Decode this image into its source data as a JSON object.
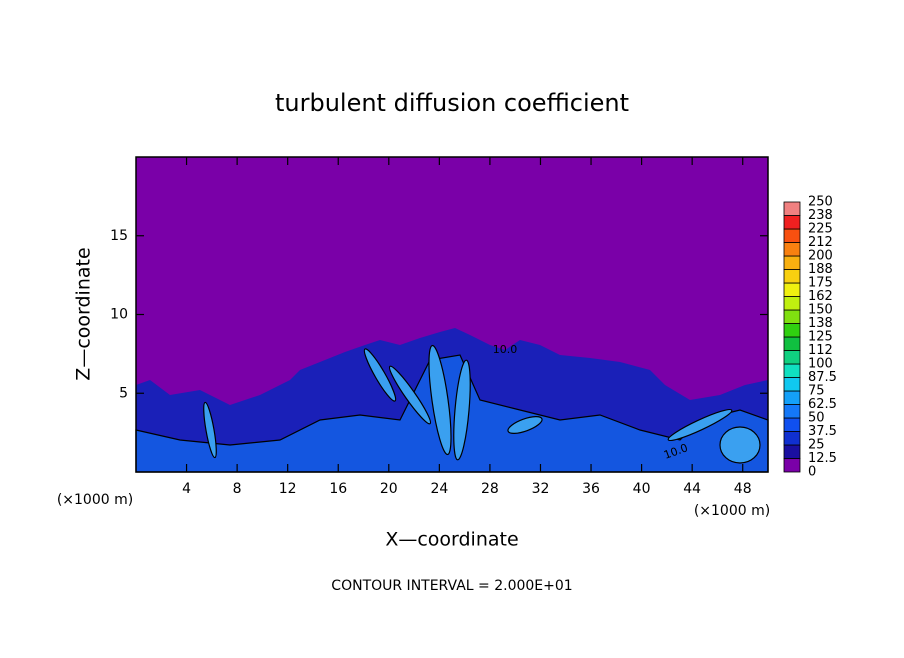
{
  "chart_data": {
    "type": "contour",
    "title": "turbulent diffusion coefficient",
    "xlabel": "X—coordinate",
    "ylabel": "Z—coordinate",
    "x_unit_label": "(×1000 m)",
    "x_unit_label_right": "(×1000 m)",
    "footer": "CONTOUR INTERVAL = 2.000E+01",
    "contour_labels": [
      "10.0",
      "10.0"
    ],
    "xlim": [
      0,
      50
    ],
    "ylim": [
      0,
      20
    ],
    "xticks": [
      4,
      8,
      12,
      16,
      20,
      24,
      28,
      32,
      36,
      40,
      44,
      48
    ],
    "yticks": [
      5,
      10,
      15
    ],
    "colorbar": {
      "levels": [
        0,
        12.5,
        25,
        37.5,
        50,
        62.5,
        75,
        87.5,
        100,
        112,
        125,
        138,
        150,
        162,
        175,
        188,
        200,
        212,
        225,
        238,
        250
      ],
      "colors": [
        "#7a00a8",
        "#1a0fa0",
        "#1030d0",
        "#1050f0",
        "#1478f8",
        "#14a0f8",
        "#10c8f0",
        "#10e0c0",
        "#10d080",
        "#10c040",
        "#30d010",
        "#80e010",
        "#c0f010",
        "#f0f010",
        "#f8d010",
        "#f8b010",
        "#f88010",
        "#f85010",
        "#f02020",
        "#f08080"
      ]
    }
  }
}
